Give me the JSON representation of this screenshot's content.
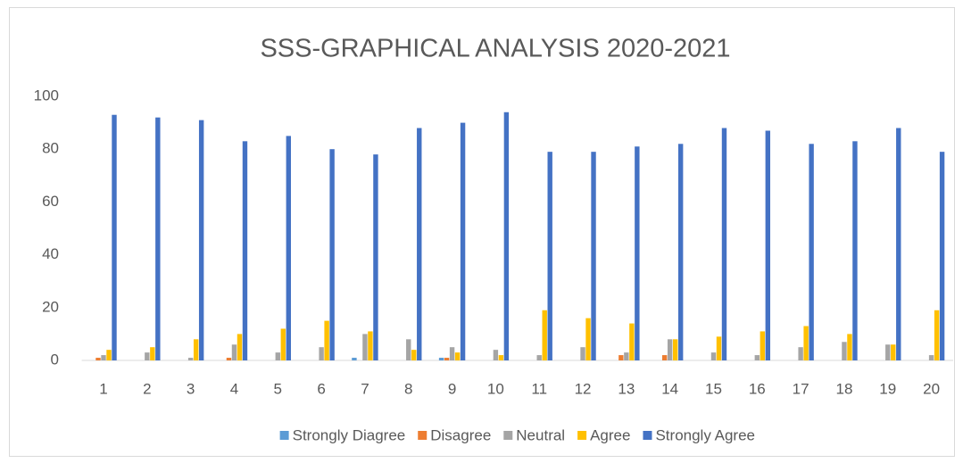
{
  "chart_data": {
    "type": "bar",
    "title": "SSS-GRAPHICAL ANALYSIS 2020-2021",
    "categories": [
      "1",
      "2",
      "3",
      "4",
      "5",
      "6",
      "7",
      "8",
      "9",
      "10",
      "11",
      "12",
      "13",
      "14",
      "15",
      "16",
      "17",
      "18",
      "19",
      "20"
    ],
    "series": [
      {
        "name": "Strongly Diagree",
        "color": "#5b9bd5",
        "values": [
          0,
          0,
          0,
          0,
          0,
          0,
          1,
          0,
          1,
          0,
          0,
          0,
          0,
          0,
          0,
          0,
          0,
          0,
          0,
          0
        ]
      },
      {
        "name": "Disagree",
        "color": "#ed7d31",
        "values": [
          1,
          0,
          0,
          1,
          0,
          0,
          0,
          0,
          1,
          0,
          0,
          0,
          2,
          2,
          0,
          0,
          0,
          0,
          0,
          0
        ]
      },
      {
        "name": "Neutral",
        "color": "#a5a5a5",
        "values": [
          2,
          3,
          1,
          6,
          3,
          5,
          10,
          8,
          5,
          4,
          2,
          5,
          3,
          8,
          3,
          2,
          5,
          7,
          6,
          2
        ]
      },
      {
        "name": "Agree",
        "color": "#ffc000",
        "values": [
          4,
          5,
          8,
          10,
          12,
          15,
          11,
          4,
          3,
          2,
          19,
          16,
          14,
          8,
          9,
          11,
          13,
          10,
          6,
          19
        ]
      },
      {
        "name": "Strongly Agree",
        "color": "#4472c4",
        "values": [
          93,
          92,
          91,
          83,
          85,
          80,
          78,
          88,
          90,
          94,
          79,
          79,
          81,
          82,
          88,
          87,
          82,
          83,
          88,
          79
        ]
      }
    ],
    "ylim": [
      0,
      100
    ],
    "yticks": [
      0,
      20,
      40,
      60,
      80,
      100
    ],
    "grid": false,
    "legend": "bottom"
  }
}
